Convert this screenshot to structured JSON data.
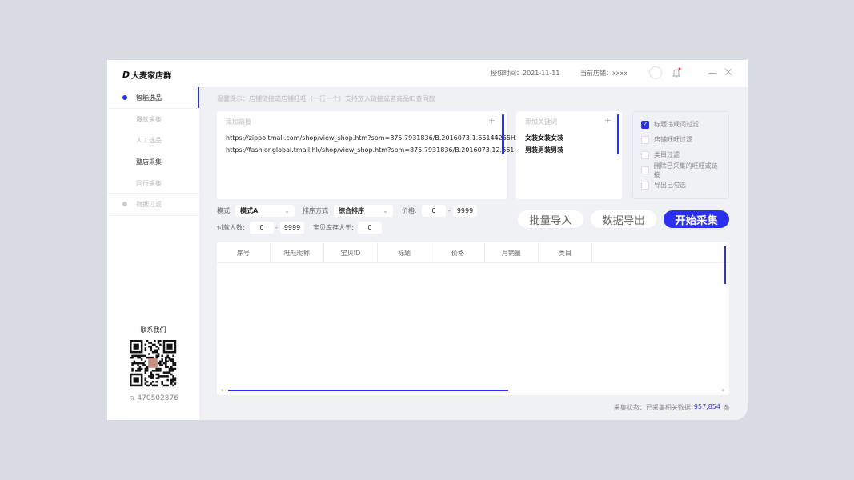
{
  "app": {
    "logo_mark": "D",
    "title": "大麦家店群"
  },
  "header": {
    "auth_time": "授权时间：2021-11-11",
    "current_store": "当前店铺：xxxx"
  },
  "sidebar": {
    "items": [
      {
        "label": "智能选品"
      },
      {
        "label": "爆款采集"
      },
      {
        "label": "人工选品"
      },
      {
        "label": "整店采集"
      },
      {
        "label": "同行采集"
      },
      {
        "label": "数据过滤"
      }
    ],
    "contact_title": "联系我们",
    "qq": "470502876"
  },
  "main": {
    "hint": "温馨提示：店铺链接或店铺旺旺（一行一个）支持放入链接或者商品ID查同款",
    "links": {
      "placeholder": "添加链接",
      "items": [
        "https://zippo.tmall.com/shop/view_shop.htm?spm=875.7931836/B.2016073.1.66144265H...",
        "https://fashionglobal.tmall.hk/shop/view_shop.htm?spm=875.7931836/B.2016073.12.661..."
      ]
    },
    "keywords": {
      "placeholder": "添加关键词",
      "items": [
        "女装女装女装",
        "男装男装男装"
      ]
    },
    "filters": [
      {
        "label": "标题违规词过滤",
        "checked": true
      },
      {
        "label": "店铺旺旺过滤",
        "checked": false
      },
      {
        "label": "类目过滤",
        "checked": false
      },
      {
        "label": "删除已采集的旺旺或链接",
        "checked": false
      },
      {
        "label": "导出已勾选",
        "checked": false
      }
    ],
    "mode": {
      "label": "模式",
      "value": "模式A"
    },
    "sort": {
      "label": "排序方式",
      "value": "综合排序"
    },
    "price": {
      "label": "价格:",
      "min": "0",
      "max": "9999"
    },
    "payers": {
      "label": "付款人数:",
      "min": "0",
      "max": "9999"
    },
    "stock": {
      "label": "宝贝库存大于:",
      "value": "0"
    },
    "dash": "-",
    "buttons": {
      "import": "批量导入",
      "export": "数据导出",
      "start": "开始采集"
    },
    "table": {
      "columns": [
        "序号",
        "旺旺昵称",
        "宝贝ID",
        "标题",
        "价格",
        "月销量",
        "类目"
      ]
    },
    "status": {
      "label": "采集状态：已采集相关数据",
      "count": "957,854",
      "unit": "条"
    }
  },
  "colors": {
    "accent": "#2b2ff0",
    "notify": "#f03b3b"
  }
}
